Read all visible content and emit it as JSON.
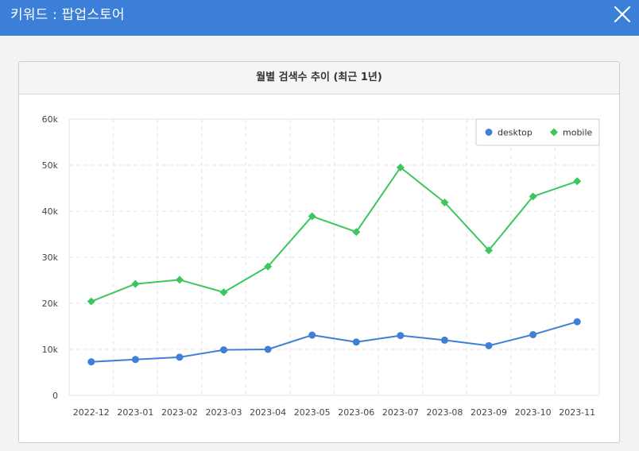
{
  "header": {
    "title": "키워드 : 팝업스토어",
    "close_icon": "close-icon"
  },
  "panel": {
    "title": "월별 검색수 추이 (최근 1년)"
  },
  "colors": {
    "header_bg": "#3c7fd9",
    "desktop": "#3f7fd6",
    "mobile": "#3cc65e"
  },
  "chart_data": {
    "type": "line",
    "title": "월별 검색수 추이 (최근 1년)",
    "xlabel": "",
    "ylabel": "",
    "categories": [
      "2022-12",
      "2023-01",
      "2023-02",
      "2023-03",
      "2023-04",
      "2023-05",
      "2023-06",
      "2023-07",
      "2023-08",
      "2023-09",
      "2023-10",
      "2023-11"
    ],
    "ylim": [
      0,
      60000
    ],
    "yticks": [
      0,
      10000,
      20000,
      30000,
      40000,
      50000,
      60000
    ],
    "ytick_labels": [
      "0",
      "10k",
      "20k",
      "30k",
      "40k",
      "50k",
      "60k"
    ],
    "grid": true,
    "legend_position": "top-right",
    "series": [
      {
        "name": "desktop",
        "marker": "circle",
        "color": "#3f7fd6",
        "values": [
          7300,
          7800,
          8300,
          9900,
          10000,
          13100,
          11600,
          13000,
          12000,
          10800,
          13200,
          16000
        ]
      },
      {
        "name": "mobile",
        "marker": "diamond",
        "color": "#3cc65e",
        "values": [
          20400,
          24200,
          25100,
          22400,
          28000,
          38900,
          35500,
          49500,
          41900,
          31500,
          43200,
          46500
        ]
      }
    ]
  }
}
